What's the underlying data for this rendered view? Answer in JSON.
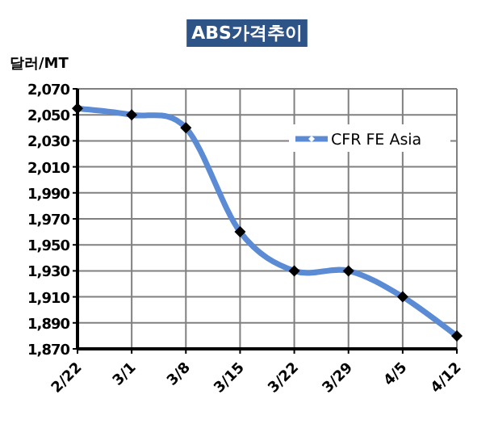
{
  "chart_data": {
    "type": "line",
    "title": "ABS가격추이",
    "ylabel": "달러/MT",
    "categories": [
      "2/22",
      "3/1",
      "3/8",
      "3/15",
      "3/22",
      "3/29",
      "4/5",
      "4/12"
    ],
    "series": [
      {
        "name": "CFR FE Asia",
        "color": "#5b8bd4",
        "values": [
          2055,
          2050,
          2040,
          1960,
          1930,
          1930,
          1910,
          1880
        ]
      }
    ],
    "ylim": [
      1870,
      2070
    ],
    "yticks": [
      {
        "value": 1870,
        "label": "1,870"
      },
      {
        "value": 1890,
        "label": "1,890"
      },
      {
        "value": 1910,
        "label": "1,910"
      },
      {
        "value": 1930,
        "label": "1,930"
      },
      {
        "value": 1950,
        "label": "1,950"
      },
      {
        "value": 1970,
        "label": "1,970"
      },
      {
        "value": 1990,
        "label": "1,990"
      },
      {
        "value": 2010,
        "label": "2,010"
      },
      {
        "value": 2030,
        "label": "2,030"
      },
      {
        "value": 2050,
        "label": "2,050"
      },
      {
        "value": 2070,
        "label": "2,070"
      }
    ],
    "grid": true,
    "legend": "top right",
    "marker": "diamond",
    "line_style": "solid"
  }
}
